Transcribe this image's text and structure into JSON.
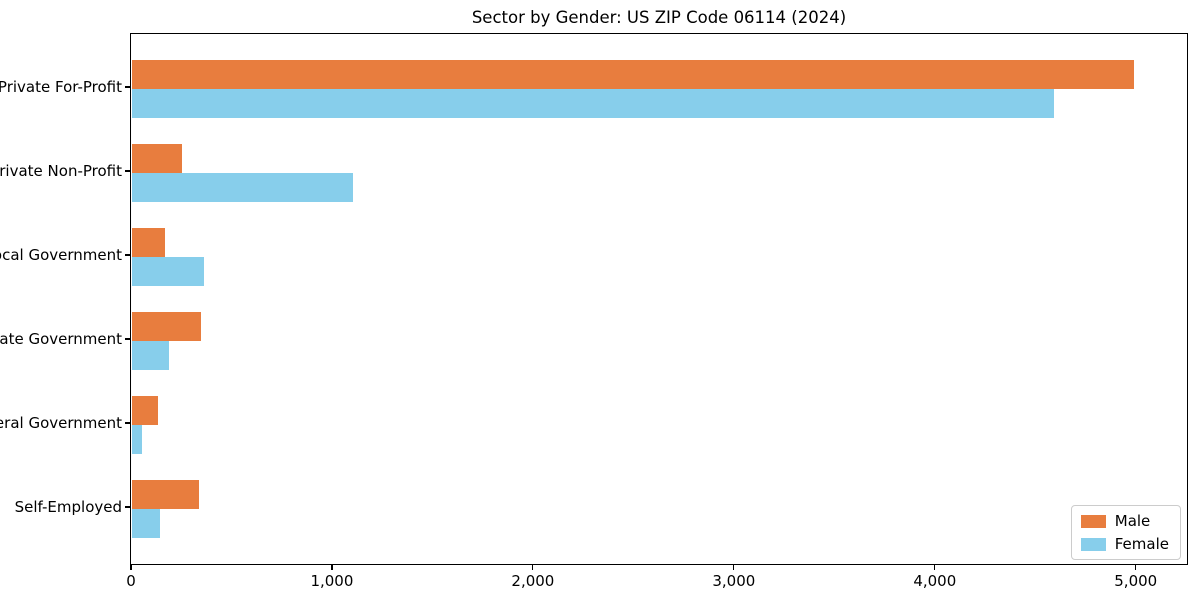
{
  "chart_data": {
    "type": "bar",
    "orientation": "horizontal",
    "title": "Sector by Gender: US ZIP Code 06114 (2024)",
    "categories": [
      "Private For-Profit",
      "Private Non-Profit",
      "Local Government",
      "State Government",
      "Federal Government",
      "Self-Employed"
    ],
    "series": [
      {
        "name": "Male",
        "color": "#e87d3e",
        "values": [
          4990,
          250,
          165,
          345,
          130,
          335
        ]
      },
      {
        "name": "Female",
        "color": "#87ceeb",
        "values": [
          4590,
          1100,
          360,
          185,
          50,
          140
        ]
      }
    ],
    "xlabel": "",
    "ylabel": "",
    "xlim": [
      0,
      5250
    ],
    "xticks": {
      "values": [
        0,
        1000,
        2000,
        3000,
        4000,
        5000
      ],
      "labels": [
        "0",
        "1,000",
        "2,000",
        "3,000",
        "4,000",
        "5,000"
      ]
    },
    "grid": false,
    "legend": {
      "position": "lower right",
      "entries": [
        "Male",
        "Female"
      ]
    }
  }
}
